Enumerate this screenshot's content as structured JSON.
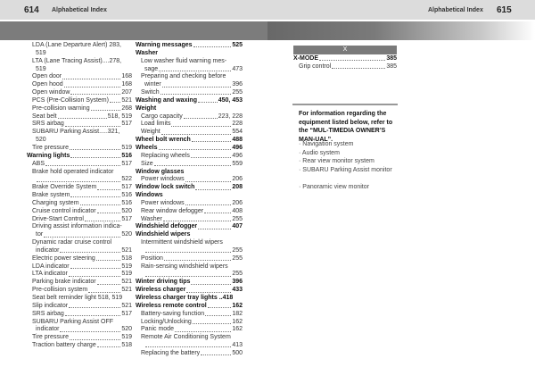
{
  "header": {
    "left_page": "614",
    "left_title": "Alphabetical Index",
    "right_title": "Alphabetical Index",
    "right_page": "615"
  },
  "col1": [
    {
      "t": "LDA (Lane Departure Alert) 283,",
      "lv": 1
    },
    {
      "t": "519",
      "lv": 2
    },
    {
      "t": "LTA (Lane Tracing Assist)....278,",
      "lv": 1
    },
    {
      "t": "519",
      "lv": 2
    },
    {
      "t": "Open door",
      "p": "168",
      "lv": 1
    },
    {
      "t": "Open hood",
      "p": "168",
      "lv": 1
    },
    {
      "t": "Open window",
      "p": "207",
      "lv": 1
    },
    {
      "t": "PCS (Pre-Collision System)",
      "p": "521",
      "lv": 1
    },
    {
      "t": "Pre-collision warning",
      "p": "268",
      "lv": 1
    },
    {
      "t": "Seat belt",
      "p": "518, 519",
      "lv": 1
    },
    {
      "t": "SRS airbag",
      "p": "517",
      "lv": 1
    },
    {
      "t": "SUBARU Parking Assist.....321,",
      "lv": 1
    },
    {
      "t": "520",
      "lv": 2
    },
    {
      "t": "Tire pressure",
      "p": "519",
      "lv": 1
    },
    {
      "t": "Warning lights",
      "p": "516",
      "lv": 0
    },
    {
      "t": "ABS",
      "p": "517",
      "lv": 1
    },
    {
      "t": "Brake hold operated indicator",
      "lv": 1
    },
    {
      "t": "",
      "p": "522",
      "lv": 2
    },
    {
      "t": "Brake Override System",
      "p": "517",
      "lv": 1
    },
    {
      "t": "Brake system",
      "p": "516",
      "lv": 1
    },
    {
      "t": "Charging system",
      "p": "516",
      "lv": 1
    },
    {
      "t": "Cruise control indicator",
      "p": "520",
      "lv": 1
    },
    {
      "t": "Drive-Start Control",
      "p": "517",
      "lv": 1
    },
    {
      "t": "Driving assist information indica-",
      "lv": 1
    },
    {
      "t": "tor",
      "p": "520",
      "lv": 2
    },
    {
      "t": "Dynamic radar cruise control",
      "lv": 1
    },
    {
      "t": "indicator",
      "p": "521",
      "lv": 2
    },
    {
      "t": "Electric power steering",
      "p": "518",
      "lv": 1
    },
    {
      "t": "LDA indicator",
      "p": "519",
      "lv": 1
    },
    {
      "t": "LTA indicator",
      "p": "519",
      "lv": 1
    },
    {
      "t": "Parking brake indicator",
      "p": "521",
      "lv": 1
    },
    {
      "t": "Pre-collision system",
      "p": "521",
      "lv": 1
    },
    {
      "t": "Seat belt reminder light 518, 519",
      "lv": 1
    },
    {
      "t": "Slip indicator",
      "p": "521",
      "lv": 1
    },
    {
      "t": "SRS airbag",
      "p": "517",
      "lv": 1
    },
    {
      "t": "SUBARU Parking Assist OFF",
      "lv": 1
    },
    {
      "t": "indicator",
      "p": "520",
      "lv": 2
    },
    {
      "t": "Tire pressure",
      "p": "519",
      "lv": 1
    },
    {
      "t": "Traction battery charge",
      "p": "518",
      "lv": 1
    }
  ],
  "col2": [
    {
      "t": "Warning messages",
      "p": "525",
      "lv": 0
    },
    {
      "t": "Washer",
      "lv": 0
    },
    {
      "t": "Low washer fluid warning mes-",
      "lv": 1
    },
    {
      "t": "sage",
      "p": "473",
      "lv": 2
    },
    {
      "t": "Preparing and checking before",
      "lv": 1
    },
    {
      "t": "winter",
      "p": "396",
      "lv": 2
    },
    {
      "t": "Switch",
      "p": "255",
      "lv": 1
    },
    {
      "t": "Washing and waxing",
      "p": "450, 453",
      "lv": 0
    },
    {
      "t": "Weight",
      "lv": 0
    },
    {
      "t": "Cargo capacity",
      "p": "223, 228",
      "lv": 1
    },
    {
      "t": "Load limits",
      "p": "228",
      "lv": 1
    },
    {
      "t": "Weight",
      "p": "554",
      "lv": 1
    },
    {
      "t": "Wheel bolt wrench",
      "p": "488",
      "lv": 0
    },
    {
      "t": "Wheels",
      "p": "496",
      "lv": 0
    },
    {
      "t": "Replacing wheels",
      "p": "496",
      "lv": 1
    },
    {
      "t": "Size",
      "p": "559",
      "lv": 1
    },
    {
      "t": "Window glasses",
      "lv": 0
    },
    {
      "t": "Power windows",
      "p": "206",
      "lv": 1
    },
    {
      "t": "Window lock switch",
      "p": "208",
      "lv": 0
    },
    {
      "t": "Windows",
      "lv": 0
    },
    {
      "t": "Power windows",
      "p": "206",
      "lv": 1
    },
    {
      "t": "Rear window defogger",
      "p": "408",
      "lv": 1
    },
    {
      "t": "Washer",
      "p": "255",
      "lv": 1
    },
    {
      "t": "Windshield defogger",
      "p": "407",
      "lv": 0
    },
    {
      "t": "Windshield wipers",
      "lv": 0
    },
    {
      "t": "Intermittent windshield wipers",
      "lv": 1
    },
    {
      "t": "",
      "p": "255",
      "lv": 2
    },
    {
      "t": "Position",
      "p": "255",
      "lv": 1
    },
    {
      "t": "Rain-sensing windshield wipers",
      "lv": 1
    },
    {
      "t": "",
      "p": "255",
      "lv": 2
    },
    {
      "t": "Winter driving tips",
      "p": "396",
      "lv": 0
    },
    {
      "t": "Wireless charger",
      "p": "433",
      "lv": 0
    },
    {
      "t": "Wireless charger tray lights ..418",
      "lv": 0
    },
    {
      "t": "Wireless remote control",
      "p": "162",
      "lv": 0
    },
    {
      "t": "Battery-saving function",
      "p": "182",
      "lv": 1
    },
    {
      "t": "Locking/Unlocking",
      "p": "162",
      "lv": 1
    },
    {
      "t": "Panic mode",
      "p": "162",
      "lv": 1
    },
    {
      "t": "Remote Air Conditioning System",
      "lv": 1
    },
    {
      "t": "",
      "p": "413",
      "lv": 2
    },
    {
      "t": "Replacing the battery",
      "p": "500",
      "lv": 1
    }
  ],
  "col3": {
    "section_letter": "X",
    "entries": [
      {
        "t": "X-MODE",
        "p": "385",
        "lv": 0
      },
      {
        "t": "Grip control",
        "p": "385",
        "lv": 1
      }
    ],
    "note": "For information regarding the equipment listed below, refer to the “MUL-TIMEDIA OWNER’S MAN-UAL”.",
    "bullets": [
      "Navigation system",
      "Audio system",
      "Rear view monitor system",
      "SUBARU Parking Assist monitor",
      "Panoramic view monitor"
    ]
  }
}
